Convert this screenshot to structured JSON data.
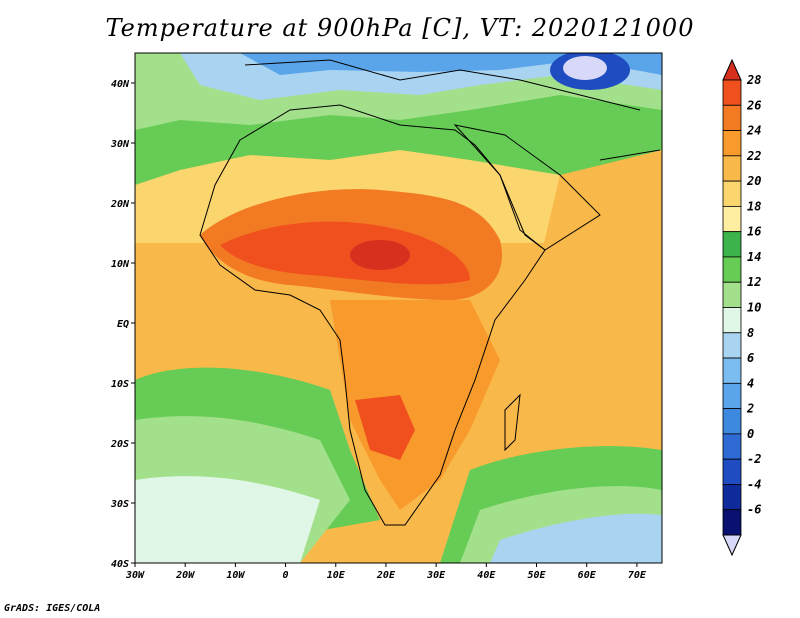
{
  "title": "Temperature at 900hPa [C], VT: 2020121000",
  "footer": "GrADS: IGES/COLA",
  "map": {
    "lon_labels": [
      "30W",
      "20W",
      "10W",
      "0",
      "10E",
      "20E",
      "30E",
      "40E",
      "50E",
      "60E",
      "70E"
    ],
    "lat_labels": [
      "40N",
      "30N",
      "20N",
      "10N",
      "EQ",
      "10S",
      "20S",
      "30S",
      "40S"
    ],
    "lon_range": [
      -30,
      75
    ],
    "lat_range": [
      -40,
      45
    ]
  },
  "colorbar": {
    "labels": [
      "28",
      "26",
      "24",
      "22",
      "20",
      "18",
      "16",
      "14",
      "12",
      "10",
      "8",
      "6",
      "4",
      "2",
      "0",
      "-2",
      "-4",
      "-6"
    ],
    "colors": [
      "#d7301f",
      "#f0501e",
      "#f27a22",
      "#f89a2c",
      "#f9b84a",
      "#fbd56e",
      "#fdeea2",
      "#3cb44b",
      "#66cc55",
      "#a3e08c",
      "#e0f7e8",
      "#a8d4f2",
      "#7bbdf0",
      "#5aa5ea",
      "#3d89e0",
      "#2e6bd4",
      "#1f4cc0",
      "#0f2a9a",
      "#0a1070",
      "#d8d8f8"
    ]
  }
}
